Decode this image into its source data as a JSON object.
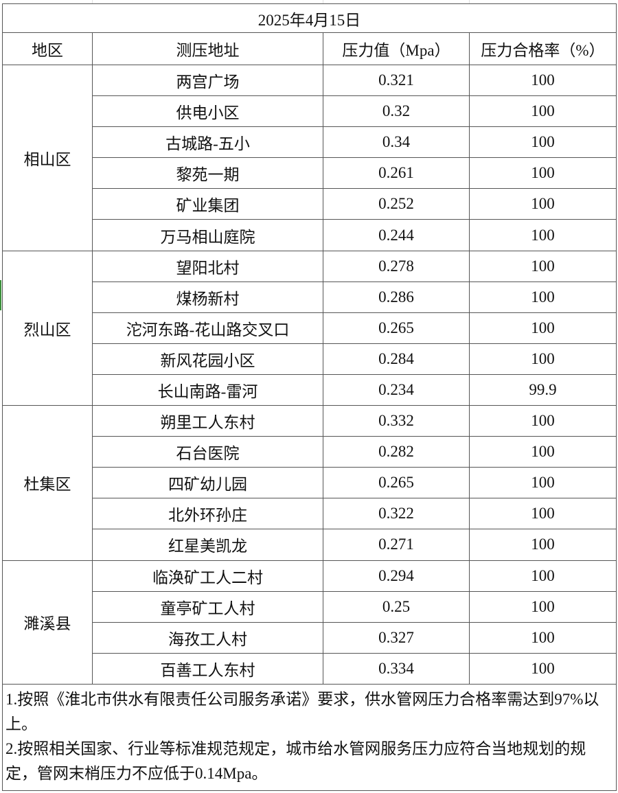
{
  "title": "2025年4月15日",
  "headers": [
    "地区",
    "测压地址",
    "压力值（Mpa）",
    "压力合格率（%）"
  ],
  "groups": [
    {
      "region": "相山区",
      "rows": [
        {
          "address": "两宫广场",
          "pressure": "0.321",
          "rate": "100"
        },
        {
          "address": "供电小区",
          "pressure": "0.32",
          "rate": "100"
        },
        {
          "address": "古城路-五小",
          "pressure": "0.34",
          "rate": "100"
        },
        {
          "address": "黎苑一期",
          "pressure": "0.261",
          "rate": "100"
        },
        {
          "address": "矿业集团",
          "pressure": "0.252",
          "rate": "100"
        },
        {
          "address": "万马相山庭院",
          "pressure": "0.244",
          "rate": "100"
        }
      ]
    },
    {
      "region": "烈山区",
      "rows": [
        {
          "address": "望阳北村",
          "pressure": "0.278",
          "rate": "100"
        },
        {
          "address": "煤杨新村",
          "pressure": "0.286",
          "rate": "100"
        },
        {
          "address": "沱河东路-花山路交叉口",
          "pressure": "0.265",
          "rate": "100"
        },
        {
          "address": "新风花园小区",
          "pressure": "0.284",
          "rate": "100"
        },
        {
          "address": "长山南路-雷河",
          "pressure": "0.234",
          "rate": "99.9"
        }
      ]
    },
    {
      "region": "杜集区",
      "rows": [
        {
          "address": "朔里工人东村",
          "pressure": "0.332",
          "rate": "100"
        },
        {
          "address": "石台医院",
          "pressure": "0.282",
          "rate": "100"
        },
        {
          "address": "四矿幼儿园",
          "pressure": "0.265",
          "rate": "100"
        },
        {
          "address": "北外环孙庄",
          "pressure": "0.322",
          "rate": "100"
        },
        {
          "address": "红星美凯龙",
          "pressure": "0.271",
          "rate": "100"
        }
      ]
    },
    {
      "region": "濉溪县",
      "rows": [
        {
          "address": "临涣矿工人二村",
          "pressure": "0.294",
          "rate": "100"
        },
        {
          "address": "童亭矿工人村",
          "pressure": "0.25",
          "rate": "100"
        },
        {
          "address": "海孜工人村",
          "pressure": "0.327",
          "rate": "100"
        },
        {
          "address": "百善工人东村",
          "pressure": "0.334",
          "rate": "100"
        }
      ]
    }
  ],
  "notes": [
    "1.按照《淮北市供水有限责任公司服务承诺》要求，供水管网压力合格率需达到97%以上。",
    "2.按照相关国家、行业等标准规范规定，城市给水管网服务压力应符合当地规划的规定，管网末梢压力不应低于0.14Mpa。"
  ]
}
